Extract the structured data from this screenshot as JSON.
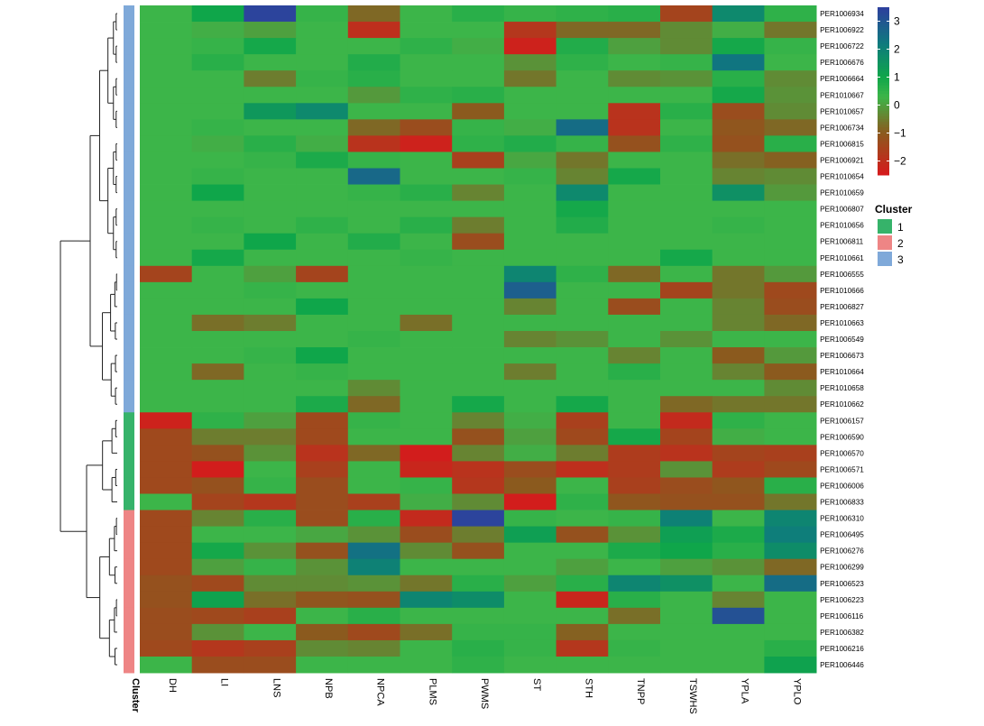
{
  "chart_data": {
    "type": "heatmap",
    "columns": [
      "DH",
      "LI",
      "LNS",
      "NPB",
      "NPCA",
      "PLMS",
      "PWMS",
      "ST",
      "STH",
      "TNPP",
      "TSWHS",
      "YPLA",
      "YPLO"
    ],
    "annotation_label": "Cluster",
    "rows": [
      {
        "id": "PER1006934",
        "cluster": 3
      },
      {
        "id": "PER1006922",
        "cluster": 3
      },
      {
        "id": "PER1006722",
        "cluster": 3
      },
      {
        "id": "PER1006676",
        "cluster": 3
      },
      {
        "id": "PER1006664",
        "cluster": 3
      },
      {
        "id": "PER1010667",
        "cluster": 3
      },
      {
        "id": "PER1010657",
        "cluster": 3
      },
      {
        "id": "PER1006734",
        "cluster": 3
      },
      {
        "id": "PER1006815",
        "cluster": 3
      },
      {
        "id": "PER1006921",
        "cluster": 3
      },
      {
        "id": "PER1010654",
        "cluster": 3
      },
      {
        "id": "PER1010659",
        "cluster": 3
      },
      {
        "id": "PER1006807",
        "cluster": 3
      },
      {
        "id": "PER1010656",
        "cluster": 3
      },
      {
        "id": "PER1006811",
        "cluster": 3
      },
      {
        "id": "PER1010661",
        "cluster": 3
      },
      {
        "id": "PER1006555",
        "cluster": 3
      },
      {
        "id": "PER1010666",
        "cluster": 3
      },
      {
        "id": "PER1006827",
        "cluster": 3
      },
      {
        "id": "PER1010663",
        "cluster": 3
      },
      {
        "id": "PER1006549",
        "cluster": 3
      },
      {
        "id": "PER1006673",
        "cluster": 3
      },
      {
        "id": "PER1010664",
        "cluster": 3
      },
      {
        "id": "PER1010658",
        "cluster": 3
      },
      {
        "id": "PER1010662",
        "cluster": 3
      },
      {
        "id": "PER1006157",
        "cluster": 1
      },
      {
        "id": "PER1006590",
        "cluster": 1
      },
      {
        "id": "PER1006570",
        "cluster": 1
      },
      {
        "id": "PER1006571",
        "cluster": 1
      },
      {
        "id": "PER1006006",
        "cluster": 1
      },
      {
        "id": "PER1006833",
        "cluster": 1
      },
      {
        "id": "PER1006310",
        "cluster": 2
      },
      {
        "id": "PER1006495",
        "cluster": 2
      },
      {
        "id": "PER1006276",
        "cluster": 2
      },
      {
        "id": "PER1006299",
        "cluster": 2
      },
      {
        "id": "PER1006523",
        "cluster": 2
      },
      {
        "id": "PER1006223",
        "cluster": 2
      },
      {
        "id": "PER1006116",
        "cluster": 2
      },
      {
        "id": "PER1006382",
        "cluster": 2
      },
      {
        "id": "PER1006216",
        "cluster": 2
      },
      {
        "id": "PER1006446",
        "cluster": 2
      }
    ],
    "values": [
      [
        0.3,
        1.0,
        3.4,
        0.4,
        -0.8,
        0.3,
        0.6,
        0.4,
        0.5,
        0.6,
        -1.5,
        1.8,
        0.5
      ],
      [
        0.3,
        0.2,
        0.0,
        0.3,
        -2.0,
        0.3,
        0.3,
        -1.8,
        -0.8,
        -0.8,
        -0.3,
        0.2,
        -0.6
      ],
      [
        0.3,
        0.4,
        0.9,
        0.3,
        0.3,
        0.5,
        0.2,
        -2.3,
        0.7,
        0.0,
        -0.3,
        0.9,
        0.4
      ],
      [
        0.3,
        0.6,
        0.3,
        0.3,
        0.7,
        0.3,
        0.3,
        -0.2,
        0.5,
        0.3,
        0.4,
        2.3,
        0.3
      ],
      [
        0.3,
        0.3,
        -0.5,
        0.4,
        0.6,
        0.3,
        0.3,
        -0.6,
        0.3,
        -0.3,
        -0.2,
        0.6,
        -0.3
      ],
      [
        0.3,
        0.3,
        0.3,
        0.3,
        -0.1,
        0.5,
        0.6,
        0.3,
        0.3,
        0.3,
        0.3,
        0.9,
        -0.2
      ],
      [
        0.3,
        0.3,
        1.4,
        1.8,
        0.3,
        0.3,
        -1.0,
        0.3,
        0.3,
        -1.9,
        0.6,
        -1.3,
        -0.3
      ],
      [
        0.3,
        0.4,
        0.3,
        0.3,
        -0.8,
        -1.3,
        0.4,
        0.2,
        2.5,
        -1.9,
        0.3,
        -1.1,
        -0.8
      ],
      [
        0.3,
        0.2,
        0.6,
        0.2,
        -1.9,
        -2.3,
        0.5,
        0.7,
        0.4,
        -1.2,
        0.5,
        -1.2,
        0.6
      ],
      [
        0.3,
        0.3,
        0.4,
        0.8,
        0.4,
        0.3,
        -1.6,
        0.1,
        -0.6,
        0.3,
        0.3,
        -0.7,
        -0.9
      ],
      [
        0.3,
        0.4,
        0.3,
        0.3,
        2.6,
        0.3,
        0.3,
        0.4,
        -0.4,
        0.9,
        0.3,
        -0.4,
        -0.3
      ],
      [
        0.3,
        1.0,
        0.3,
        0.3,
        0.4,
        0.6,
        -0.4,
        0.3,
        1.8,
        0.3,
        0.3,
        1.6,
        -0.1
      ],
      [
        0.3,
        0.3,
        0.3,
        0.3,
        0.3,
        0.3,
        0.3,
        0.3,
        0.9,
        0.3,
        0.3,
        0.3,
        0.3
      ],
      [
        0.3,
        0.4,
        0.3,
        0.5,
        0.3,
        0.6,
        -0.5,
        0.3,
        0.7,
        0.3,
        0.3,
        0.4,
        0.3
      ],
      [
        0.3,
        0.3,
        1.0,
        0.3,
        0.7,
        0.3,
        -1.3,
        0.3,
        0.3,
        0.3,
        0.3,
        0.3,
        0.3
      ],
      [
        0.3,
        0.9,
        0.3,
        0.3,
        0.3,
        0.4,
        0.3,
        0.3,
        0.3,
        0.3,
        0.9,
        0.3,
        0.3
      ],
      [
        -1.5,
        0.3,
        0.0,
        -1.5,
        0.3,
        0.3,
        0.3,
        1.9,
        0.5,
        -0.8,
        0.3,
        -0.6,
        -0.1
      ],
      [
        0.3,
        0.3,
        0.4,
        0.3,
        0.3,
        0.3,
        0.3,
        2.8,
        0.3,
        0.3,
        -1.5,
        -0.6,
        -1.4
      ],
      [
        0.3,
        0.3,
        0.3,
        1.0,
        0.3,
        0.3,
        0.3,
        -0.4,
        0.3,
        -1.3,
        0.3,
        -0.4,
        -1.3
      ],
      [
        0.3,
        -0.7,
        -0.5,
        0.3,
        0.3,
        -0.7,
        0.3,
        0.3,
        0.3,
        0.3,
        0.3,
        -0.4,
        -0.8
      ],
      [
        0.3,
        0.3,
        0.3,
        0.3,
        0.4,
        0.3,
        0.3,
        -0.4,
        -0.2,
        0.3,
        -0.2,
        0.3,
        0.3
      ],
      [
        0.3,
        0.3,
        0.4,
        1.0,
        0.3,
        0.3,
        0.3,
        0.3,
        0.3,
        -0.4,
        0.3,
        -1.0,
        -0.1
      ],
      [
        0.3,
        -0.8,
        0.3,
        0.4,
        0.3,
        0.3,
        0.3,
        -0.5,
        0.3,
        0.6,
        0.3,
        -0.4,
        -1.0
      ],
      [
        0.3,
        0.3,
        0.3,
        0.3,
        -0.3,
        0.3,
        0.3,
        0.3,
        0.3,
        0.3,
        0.3,
        0.3,
        -0.3
      ],
      [
        0.3,
        0.3,
        0.3,
        0.8,
        -0.8,
        0.3,
        0.9,
        0.3,
        0.9,
        0.3,
        -0.8,
        -0.6,
        -0.6
      ],
      [
        -2.3,
        0.5,
        0.0,
        -1.4,
        0.4,
        0.3,
        -0.4,
        0.2,
        -1.6,
        0.3,
        -2.1,
        0.5,
        0.3
      ],
      [
        -1.4,
        -0.5,
        -0.5,
        -1.4,
        0.3,
        0.3,
        -1.2,
        0.0,
        -1.4,
        0.9,
        -1.5,
        0.2,
        0.3
      ],
      [
        -1.4,
        -1.2,
        -0.2,
        -1.9,
        -0.8,
        -2.4,
        -0.4,
        0.2,
        -0.5,
        -1.7,
        -1.9,
        -1.5,
        -1.6
      ],
      [
        -1.4,
        -2.4,
        0.3,
        -1.6,
        0.3,
        -2.2,
        -1.9,
        -1.3,
        -2.0,
        -1.7,
        -0.2,
        -1.7,
        -1.4
      ],
      [
        -1.4,
        -1.2,
        0.4,
        -1.3,
        0.3,
        0.4,
        -1.8,
        -1.0,
        0.3,
        -1.6,
        -1.3,
        -1.1,
        0.6
      ],
      [
        0.3,
        -1.5,
        -1.8,
        -1.3,
        -1.6,
        0.2,
        -0.3,
        -2.4,
        0.5,
        -1.1,
        -1.2,
        -1.2,
        -0.6
      ],
      [
        -1.4,
        -0.4,
        0.6,
        -1.3,
        0.6,
        -2.1,
        3.4,
        0.4,
        0.3,
        0.4,
        2.0,
        0.3,
        1.9
      ],
      [
        -1.4,
        0.3,
        0.3,
        0.1,
        -0.2,
        -1.3,
        -0.5,
        1.2,
        -1.2,
        -0.2,
        1.2,
        0.8,
        2.1
      ],
      [
        -1.4,
        0.9,
        -0.2,
        -1.2,
        2.4,
        -0.3,
        -1.2,
        0.3,
        0.3,
        0.8,
        1.0,
        0.6,
        1.7
      ],
      [
        -1.4,
        0.0,
        0.4,
        -0.2,
        2.0,
        0.3,
        0.3,
        0.3,
        0.0,
        0.3,
        0.0,
        -0.2,
        -0.8
      ],
      [
        -1.2,
        -1.4,
        -0.3,
        -0.3,
        -0.2,
        -0.6,
        0.6,
        0.0,
        0.6,
        1.9,
        1.6,
        0.3,
        2.5
      ],
      [
        -1.2,
        1.1,
        -0.7,
        -1.1,
        -1.2,
        1.9,
        1.7,
        0.3,
        -2.2,
        0.6,
        0.3,
        -0.4,
        0.3
      ],
      [
        -1.3,
        -1.4,
        -1.6,
        0.3,
        0.6,
        0.3,
        0.3,
        0.3,
        0.3,
        -0.7,
        0.3,
        3.1,
        0.3
      ],
      [
        -1.3,
        -0.2,
        0.3,
        -1.0,
        -1.4,
        -0.7,
        0.4,
        0.4,
        -0.9,
        0.3,
        0.3,
        0.3,
        0.3
      ],
      [
        -1.4,
        -1.8,
        -1.6,
        -0.3,
        -0.4,
        0.3,
        0.6,
        0.4,
        -1.8,
        0.4,
        0.3,
        0.3,
        0.6
      ],
      [
        0.3,
        -1.3,
        -1.3,
        0.3,
        0.3,
        0.3,
        0.5,
        0.3,
        0.3,
        0.3,
        0.3,
        0.3,
        1.1
      ]
    ],
    "color_scale": {
      "min": -2.5,
      "max": 3.5,
      "stops": [
        {
          "v": -2.5,
          "color": "#d7191c"
        },
        {
          "v": -1.0,
          "color": "#8b5a1e"
        },
        {
          "v": 0.3,
          "color": "#3cb549"
        },
        {
          "v": 1.0,
          "color": "#0fa64a"
        },
        {
          "v": 2.2,
          "color": "#0e7a7e"
        },
        {
          "v": 3.5,
          "color": "#2e3f9e"
        }
      ],
      "ticks": [
        3,
        2,
        1,
        0,
        -1,
        -2
      ],
      "tick_labels": [
        "3",
        "2",
        "1",
        "0",
        "−1",
        "−2"
      ]
    },
    "legend": {
      "title": "Cluster",
      "items": [
        {
          "label": "1",
          "color": "#36b36a"
        },
        {
          "label": "2",
          "color": "#ee8585"
        },
        {
          "label": "3",
          "color": "#7fa9d9"
        }
      ]
    },
    "dendrogram": {
      "top": [
        0,
        24
      ],
      "bottom": [
        25,
        40
      ],
      "middle": [
        16,
        24
      ],
      "c1": [
        25,
        30
      ],
      "c2": [
        31,
        40
      ]
    }
  }
}
